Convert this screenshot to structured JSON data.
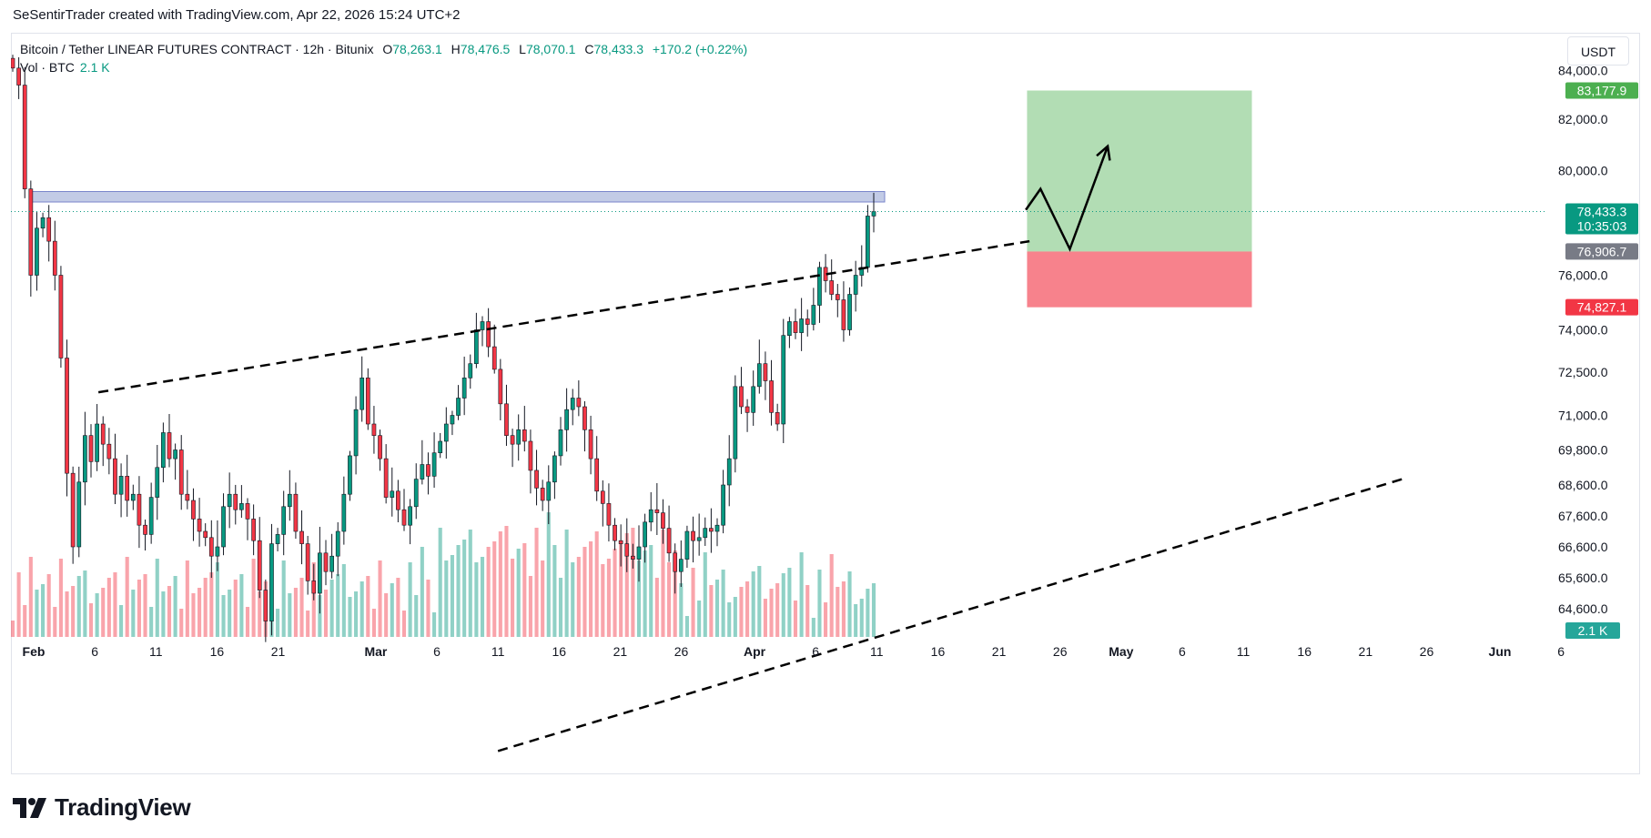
{
  "credit": "SeSentirTrader created with TradingView.com, Apr 22, 2026 15:24 UTC+2",
  "currency_button": "USDT",
  "brand": "TradingView",
  "legend": {
    "symbol": "Bitcoin / Tether LINEAR FUTURES CONTRACT · 12h · Bitunix",
    "o_label": "O",
    "o_value": "78,263.1",
    "h_label": "H",
    "h_value": "78,476.5",
    "l_label": "L",
    "l_value": "78,070.1",
    "c_label": "C",
    "c_value": "78,433.3",
    "change": "+170.2 (+0.22%)",
    "vol_label": "Vol · BTC",
    "vol_value": "2.1 K"
  },
  "chart_data": {
    "type": "candlestick",
    "title": "Bitcoin / Tether LINEAR FUTURES CONTRACT · 12h · Bitunix",
    "ylim": [
      63000,
      85000
    ],
    "y_ticks": [
      {
        "value": 84000,
        "label": "84,000.0"
      },
      {
        "value": 82000,
        "label": "82,000.0"
      },
      {
        "value": 80000,
        "label": "80,000.0"
      },
      {
        "value": 76000,
        "label": "76,000.0"
      },
      {
        "value": 74000,
        "label": "74,000.0"
      },
      {
        "value": 72500,
        "label": "72,500.0"
      },
      {
        "value": 71000,
        "label": "71,000.0"
      },
      {
        "value": 69800,
        "label": "69,800.0"
      },
      {
        "value": 68600,
        "label": "68,600.0"
      },
      {
        "value": 67600,
        "label": "67,600.0"
      },
      {
        "value": 66600,
        "label": "66,600.0"
      },
      {
        "value": 65600,
        "label": "65,600.0"
      },
      {
        "value": 64600,
        "label": "64,600.0"
      }
    ],
    "x_ticks": [
      {
        "day": 1,
        "label": "Feb",
        "bold": true
      },
      {
        "day": 6,
        "label": "6"
      },
      {
        "day": 11,
        "label": "11"
      },
      {
        "day": 16,
        "label": "16"
      },
      {
        "day": 21,
        "label": "21"
      },
      {
        "day": 29,
        "label": "Mar",
        "bold": true
      },
      {
        "day": 34,
        "label": "6"
      },
      {
        "day": 39,
        "label": "11"
      },
      {
        "day": 44,
        "label": "16"
      },
      {
        "day": 49,
        "label": "21"
      },
      {
        "day": 54,
        "label": "26"
      },
      {
        "day": 60,
        "label": "Apr",
        "bold": true
      },
      {
        "day": 65,
        "label": "6"
      },
      {
        "day": 70,
        "label": "11"
      },
      {
        "day": 75,
        "label": "16"
      },
      {
        "day": 80,
        "label": "21"
      },
      {
        "day": 85,
        "label": "26"
      },
      {
        "day": 90,
        "label": "May",
        "bold": true
      },
      {
        "day": 95,
        "label": "6"
      },
      {
        "day": 100,
        "label": "11"
      },
      {
        "day": 105,
        "label": "16"
      },
      {
        "day": 110,
        "label": "21"
      },
      {
        "day": 115,
        "label": "26"
      },
      {
        "day": 121,
        "label": "Jun",
        "bold": true
      },
      {
        "day": 126,
        "label": "6"
      }
    ],
    "closes": [
      84100,
      83400,
      79300,
      76000,
      77800,
      78200,
      77300,
      76000,
      73000,
      69000,
      66600,
      68700,
      70300,
      69400,
      70700,
      70000,
      69500,
      68300,
      68900,
      68100,
      68300,
      67300,
      67000,
      68200,
      69200,
      70400,
      69500,
      69800,
      68300,
      68100,
      67500,
      67100,
      66900,
      66300,
      66600,
      67900,
      68300,
      67800,
      68000,
      67500,
      66800,
      65200,
      64200,
      66700,
      67000,
      67900,
      68300,
      67100,
      66700,
      65500,
      65100,
      66400,
      65800,
      66300,
      67100,
      68300,
      69600,
      71200,
      72300,
      70700,
      70300,
      69500,
      68200,
      68400,
      67800,
      67300,
      67900,
      68800,
      69300,
      68900,
      69700,
      70100,
      70700,
      71000,
      71600,
      72300,
      72800,
      74000,
      74300,
      73400,
      72600,
      71400,
      70300,
      70000,
      70500,
      70100,
      69100,
      68500,
      68100,
      68700,
      69600,
      70500,
      71200,
      71600,
      71300,
      70500,
      69500,
      68400,
      68000,
      67300,
      66800,
      66700,
      66300,
      66200,
      66600,
      67400,
      67800,
      67700,
      67200,
      66400,
      65800,
      66200,
      67100,
      66800,
      66900,
      67200,
      67100,
      67300,
      68600,
      69500,
      72000,
      71300,
      71100,
      72000,
      72800,
      72200,
      71100,
      70700,
      73800,
      74300,
      73900,
      74400,
      74200,
      74900,
      76300,
      75800,
      75300,
      75100,
      74000,
      75300,
      76000,
      76300,
      78263,
      78433
    ],
    "volume_last_label": "2.1 K",
    "horizontal_zone": {
      "from": 78800,
      "to": 79200
    },
    "last_price_line": 78433.3,
    "upper_trendline": [
      {
        "day": 6.3,
        "price": 71800
      },
      {
        "day": 82.5,
        "price": 77300
      }
    ],
    "lower_trendline": [
      {
        "day": 39,
        "price": 60000
      },
      {
        "day": 113,
        "price": 68800
      }
    ],
    "position": {
      "entry": 76906.7,
      "target": 83177.9,
      "stop": 74827.1,
      "day_from": 82.3,
      "day_to": 100.7
    },
    "projection": [
      {
        "day": 82.2,
        "price": 78500
      },
      {
        "day": 83.4,
        "price": 79300
      },
      {
        "day": 85.8,
        "price": 77000
      },
      {
        "day": 88.9,
        "price": 80950
      }
    ],
    "price_labels": [
      {
        "label": "83,177.9",
        "value": 83177.9,
        "color": "#4caf50"
      },
      {
        "label": "78,433.3",
        "sub": "10:35:03",
        "value": 78433.3,
        "color": "#089981"
      },
      {
        "label": "76,906.7",
        "value": 76906.7,
        "color": "#787b86"
      },
      {
        "label": "74,827.1",
        "value": 74827.1,
        "color": "#f23645"
      }
    ]
  }
}
